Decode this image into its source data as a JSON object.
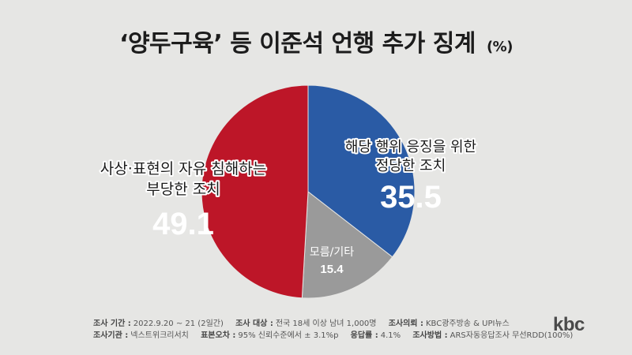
{
  "title": {
    "main": "‘양두구육’ 등 이준석 언행 추가 징계",
    "unit": "(%)"
  },
  "chart_data": {
    "type": "pie",
    "slices": [
      {
        "label": [
          "해당 행위 응징을 위한",
          "정당한 조치"
        ],
        "value": 35.5,
        "color": "#2a5ba5"
      },
      {
        "label": [
          "모름/기타"
        ],
        "value": 15.4,
        "color": "#9a9a9a"
      },
      {
        "label": [
          "사상·표현의 자유 침해하는",
          "부당한 조치"
        ],
        "value": 49.1,
        "color": "#bd1628"
      }
    ]
  },
  "footer": {
    "line1": [
      {
        "key": "조사 기간 :",
        "val": "2022.9.20 ~ 21 (2일간)"
      },
      {
        "key": "조사 대상 :",
        "val": "전국 18세 이상 남녀 1,000명"
      },
      {
        "key": "조사의뢰 :",
        "val": "KBC광주방송 & UPI뉴스"
      }
    ],
    "line2": [
      {
        "key": "조사기관 :",
        "val": "넥스트위크리서치"
      },
      {
        "key": "표본오차 :",
        "val": "95% 신뢰수준에서 ± 3.1%p"
      },
      {
        "key": "응답률 :",
        "val": "4.1%"
      },
      {
        "key": "조사방법 :",
        "val": "ARS자동응답조사 무선RDD(100%)"
      }
    ]
  },
  "logo": "kbc"
}
